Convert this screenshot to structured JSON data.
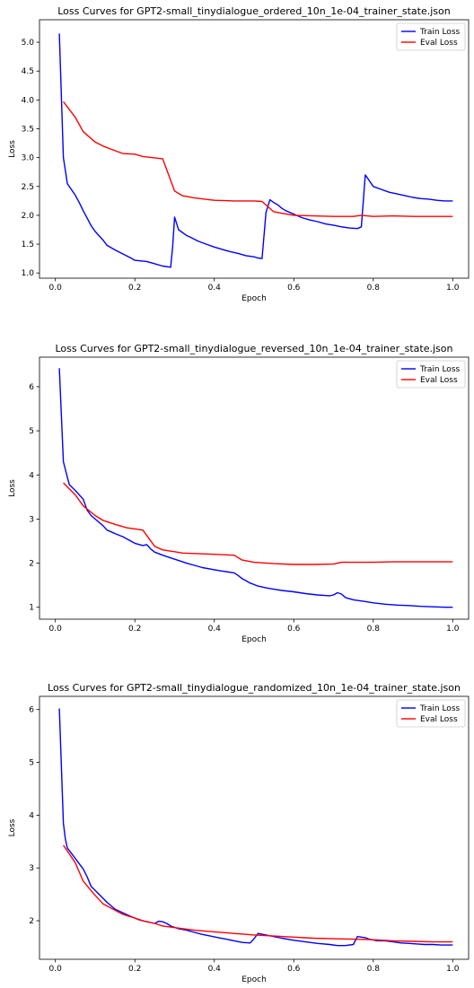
{
  "chart_data": [
    {
      "type": "line",
      "title": "Loss Curves for GPT2-small_tinydialogue_ordered_10n_1e-04_trainer_state.json",
      "xlabel": "Epoch",
      "ylabel": "Loss",
      "xlim": [
        -0.04,
        1.04
      ],
      "ylim": [
        0.91,
        5.39
      ],
      "xticks": [
        "0.0",
        "0.2",
        "0.4",
        "0.6",
        "0.8",
        "1.0"
      ],
      "yticks": [
        "1.0",
        "1.5",
        "2.0",
        "2.5",
        "3.0",
        "3.5",
        "4.0",
        "4.5",
        "5.0"
      ],
      "legend": "top-right",
      "series": [
        {
          "name": "Train Loss",
          "color": "#0000ff",
          "x": [
            0.01,
            0.02,
            0.025,
            0.03,
            0.04,
            0.05,
            0.06,
            0.07,
            0.08,
            0.09,
            0.1,
            0.12,
            0.13,
            0.15,
            0.17,
            0.19,
            0.2,
            0.23,
            0.25,
            0.27,
            0.29,
            0.295,
            0.3,
            0.31,
            0.33,
            0.34,
            0.36,
            0.38,
            0.4,
            0.42,
            0.44,
            0.46,
            0.48,
            0.5,
            0.51,
            0.52,
            0.53,
            0.54,
            0.55,
            0.56,
            0.57,
            0.58,
            0.6,
            0.62,
            0.64,
            0.66,
            0.68,
            0.7,
            0.72,
            0.74,
            0.76,
            0.77,
            0.775,
            0.78,
            0.8,
            0.82,
            0.84,
            0.86,
            0.88,
            0.9,
            0.92,
            0.94,
            0.96,
            0.98,
            1.0
          ],
          "y": [
            5.15,
            3.0,
            2.78,
            2.55,
            2.45,
            2.35,
            2.22,
            2.08,
            1.95,
            1.82,
            1.72,
            1.57,
            1.48,
            1.4,
            1.33,
            1.26,
            1.22,
            1.2,
            1.16,
            1.12,
            1.1,
            1.45,
            1.97,
            1.75,
            1.65,
            1.62,
            1.55,
            1.5,
            1.45,
            1.41,
            1.37,
            1.34,
            1.3,
            1.28,
            1.26,
            1.25,
            2.05,
            2.27,
            2.22,
            2.18,
            2.12,
            2.08,
            2.02,
            1.96,
            1.92,
            1.89,
            1.85,
            1.83,
            1.8,
            1.78,
            1.77,
            1.8,
            2.25,
            2.7,
            2.5,
            2.45,
            2.4,
            2.37,
            2.34,
            2.31,
            2.29,
            2.28,
            2.26,
            2.25,
            2.25
          ]
        },
        {
          "name": "Eval Loss",
          "color": "#ff0000",
          "x": [
            0.02,
            0.05,
            0.07,
            0.1,
            0.12,
            0.15,
            0.17,
            0.2,
            0.22,
            0.27,
            0.3,
            0.32,
            0.35,
            0.4,
            0.45,
            0.5,
            0.52,
            0.55,
            0.6,
            0.65,
            0.7,
            0.75,
            0.77,
            0.8,
            0.85,
            0.9,
            0.95,
            1.0
          ],
          "y": [
            3.97,
            3.7,
            3.45,
            3.27,
            3.2,
            3.12,
            3.07,
            3.06,
            3.02,
            2.98,
            2.42,
            2.34,
            2.3,
            2.26,
            2.25,
            2.25,
            2.24,
            2.06,
            2.0,
            1.99,
            1.98,
            1.98,
            2.0,
            1.98,
            1.99,
            1.98,
            1.98,
            1.98
          ]
        }
      ]
    },
    {
      "type": "line",
      "title": "Loss Curves for GPT2-small_tinydialogue_reversed_10n_1e-04_trainer_state.json",
      "xlabel": "Epoch",
      "ylabel": "Loss",
      "xlim": [
        -0.04,
        1.04
      ],
      "ylim": [
        0.73,
        6.67
      ],
      "xticks": [
        "0.0",
        "0.2",
        "0.4",
        "0.6",
        "0.8",
        "1.0"
      ],
      "yticks": [
        "1",
        "2",
        "3",
        "4",
        "5",
        "6"
      ],
      "legend": "top-right",
      "series": [
        {
          "name": "Train Loss",
          "color": "#0000ff",
          "x": [
            0.01,
            0.02,
            0.03,
            0.035,
            0.05,
            0.07,
            0.08,
            0.09,
            0.1,
            0.12,
            0.13,
            0.15,
            0.17,
            0.19,
            0.2,
            0.22,
            0.23,
            0.24,
            0.25,
            0.27,
            0.29,
            0.31,
            0.33,
            0.35,
            0.37,
            0.4,
            0.42,
            0.45,
            0.46,
            0.47,
            0.49,
            0.51,
            0.53,
            0.55,
            0.57,
            0.6,
            0.63,
            0.66,
            0.69,
            0.7,
            0.71,
            0.72,
            0.73,
            0.75,
            0.78,
            0.8,
            0.83,
            0.86,
            0.89,
            0.92,
            0.95,
            0.98,
            1.0
          ],
          "y": [
            6.42,
            4.3,
            3.95,
            3.78,
            3.65,
            3.45,
            3.2,
            3.08,
            3.0,
            2.85,
            2.75,
            2.67,
            2.6,
            2.5,
            2.45,
            2.4,
            2.42,
            2.32,
            2.25,
            2.18,
            2.12,
            2.06,
            2.0,
            1.95,
            1.9,
            1.85,
            1.82,
            1.78,
            1.72,
            1.65,
            1.55,
            1.48,
            1.44,
            1.41,
            1.38,
            1.35,
            1.31,
            1.28,
            1.26,
            1.28,
            1.33,
            1.3,
            1.22,
            1.17,
            1.13,
            1.1,
            1.07,
            1.05,
            1.04,
            1.02,
            1.01,
            1.0,
            1.0
          ]
        },
        {
          "name": "Eval Loss",
          "color": "#ff0000",
          "x": [
            0.02,
            0.05,
            0.07,
            0.1,
            0.12,
            0.15,
            0.18,
            0.22,
            0.25,
            0.27,
            0.3,
            0.32,
            0.35,
            0.4,
            0.45,
            0.47,
            0.5,
            0.55,
            0.6,
            0.65,
            0.7,
            0.72,
            0.75,
            0.8,
            0.85,
            0.9,
            0.95,
            1.0
          ],
          "y": [
            3.82,
            3.55,
            3.3,
            3.08,
            2.97,
            2.88,
            2.8,
            2.75,
            2.38,
            2.3,
            2.26,
            2.23,
            2.22,
            2.2,
            2.18,
            2.07,
            2.02,
            1.99,
            1.97,
            1.97,
            1.98,
            2.02,
            2.02,
            2.02,
            2.03,
            2.03,
            2.03,
            2.03
          ]
        }
      ]
    },
    {
      "type": "line",
      "title": "Loss Curves for GPT2-small_tinydialogue_randomized_10n_1e-04_trainer_state.json",
      "xlabel": "Epoch",
      "ylabel": "Loss",
      "xlim": [
        -0.04,
        1.04
      ],
      "ylim": [
        1.27,
        6.25
      ],
      "xticks": [
        "0.0",
        "0.2",
        "0.4",
        "0.6",
        "0.8",
        "1.0"
      ],
      "yticks": [
        "2",
        "3",
        "4",
        "5",
        "6"
      ],
      "legend": "top-right",
      "series": [
        {
          "name": "Train Loss",
          "color": "#0000ff",
          "x": [
            0.01,
            0.02,
            0.025,
            0.03,
            0.05,
            0.07,
            0.08,
            0.09,
            0.11,
            0.13,
            0.15,
            0.17,
            0.19,
            0.21,
            0.23,
            0.25,
            0.26,
            0.27,
            0.28,
            0.29,
            0.31,
            0.33,
            0.35,
            0.37,
            0.39,
            0.41,
            0.43,
            0.45,
            0.47,
            0.49,
            0.5,
            0.51,
            0.53,
            0.55,
            0.57,
            0.6,
            0.63,
            0.66,
            0.69,
            0.71,
            0.73,
            0.75,
            0.76,
            0.78,
            0.79,
            0.81,
            0.83,
            0.85,
            0.87,
            0.89,
            0.91,
            0.93,
            0.95,
            0.97,
            1.0
          ],
          "y": [
            6.02,
            3.85,
            3.55,
            3.38,
            3.18,
            2.98,
            2.83,
            2.65,
            2.5,
            2.35,
            2.22,
            2.15,
            2.08,
            2.02,
            1.98,
            1.95,
            1.99,
            1.98,
            1.95,
            1.9,
            1.85,
            1.82,
            1.78,
            1.74,
            1.71,
            1.68,
            1.65,
            1.62,
            1.59,
            1.58,
            1.66,
            1.76,
            1.73,
            1.7,
            1.67,
            1.63,
            1.6,
            1.57,
            1.55,
            1.53,
            1.53,
            1.55,
            1.7,
            1.68,
            1.65,
            1.62,
            1.62,
            1.6,
            1.58,
            1.57,
            1.56,
            1.55,
            1.55,
            1.54,
            1.54
          ]
        },
        {
          "name": "Eval Loss",
          "color": "#ff0000",
          "x": [
            0.02,
            0.05,
            0.07,
            0.1,
            0.12,
            0.15,
            0.17,
            0.2,
            0.22,
            0.25,
            0.27,
            0.3,
            0.35,
            0.4,
            0.45,
            0.5,
            0.55,
            0.6,
            0.65,
            0.7,
            0.75,
            0.8,
            0.85,
            0.9,
            0.95,
            1.0
          ],
          "y": [
            3.43,
            3.1,
            2.75,
            2.48,
            2.32,
            2.2,
            2.12,
            2.05,
            2.0,
            1.95,
            1.9,
            1.87,
            1.82,
            1.79,
            1.76,
            1.73,
            1.71,
            1.69,
            1.67,
            1.66,
            1.65,
            1.64,
            1.62,
            1.61,
            1.6,
            1.6
          ]
        }
      ]
    }
  ]
}
